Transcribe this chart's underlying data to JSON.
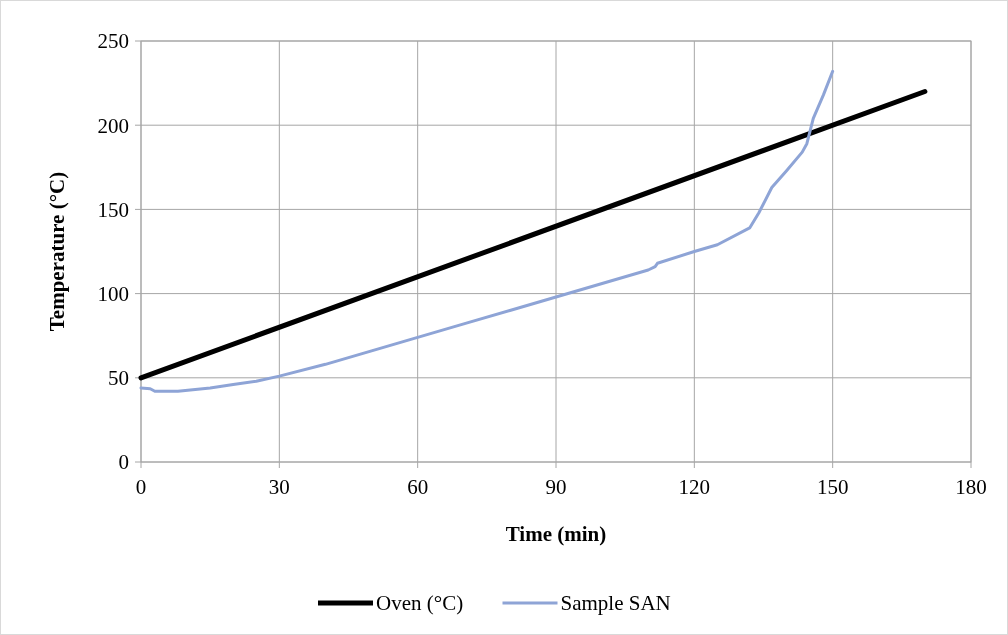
{
  "chart_data": {
    "type": "line",
    "xlabel": "Time (min)",
    "ylabel": "Temperature (°C)",
    "xlim": [
      0,
      180
    ],
    "xticks": [
      0,
      30,
      60,
      90,
      120,
      150,
      180
    ],
    "ylim": [
      0,
      250
    ],
    "yticks": [
      0,
      50,
      100,
      150,
      200,
      250
    ],
    "grid": true,
    "legend": "bottom",
    "marker": "none",
    "line_style": "solid",
    "series": [
      {
        "name": "Oven (°C)",
        "color": "#000000",
        "x": [
          0,
          170
        ],
        "values": [
          50,
          220
        ]
      },
      {
        "name": "Sample SAN",
        "color": "#8ea4d6",
        "x": [
          0,
          2,
          3,
          8,
          15,
          20,
          25,
          30,
          40,
          50,
          60,
          70,
          80,
          90,
          100,
          110,
          111.5,
          112,
          120,
          125,
          132,
          134,
          136.8,
          140,
          143.4,
          144.4,
          145.8,
          148,
          150
        ],
        "values": [
          44,
          43.5,
          42,
          42,
          44,
          46,
          48,
          51,
          58,
          66,
          74,
          82,
          90,
          98,
          106,
          114,
          116,
          118,
          125,
          129,
          139,
          148,
          163,
          173,
          184,
          189,
          204,
          218,
          232
        ]
      }
    ]
  }
}
